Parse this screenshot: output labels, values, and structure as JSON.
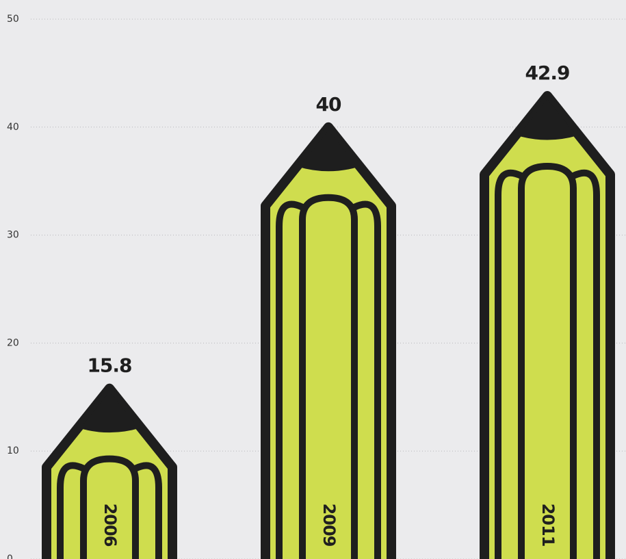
{
  "chart_data": {
    "type": "pictorial_bar",
    "categories": [
      "2006",
      "2009",
      "2011"
    ],
    "values": [
      15.8,
      40,
      42.9
    ],
    "color": "#cfdd4e",
    "ylim": [
      0,
      50
    ],
    "yticks": [
      0,
      10,
      20,
      30,
      40,
      50
    ],
    "grid": true
  }
}
